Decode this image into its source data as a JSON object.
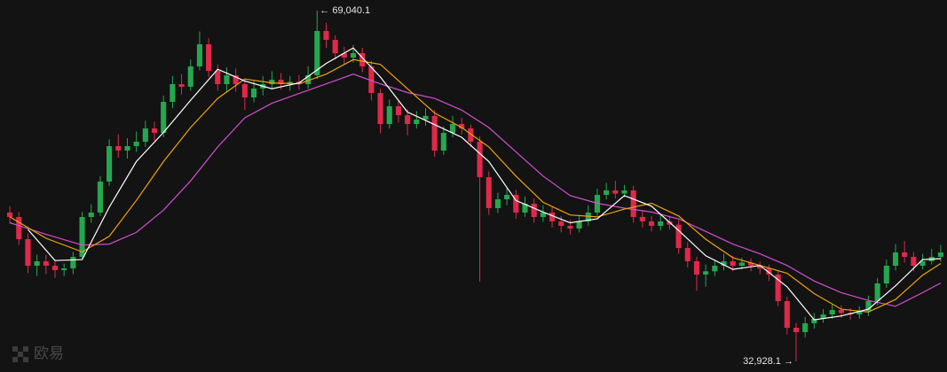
{
  "chart_data": {
    "type": "candlestick",
    "up_color": "#25a750",
    "down_color": "#e0294a",
    "ylim": [
      31830,
      70134
    ],
    "open": [
      48246,
      47790,
      45510,
      42774,
      43230,
      42774,
      42318,
      42500,
      43686,
      47790,
      48246,
      51438,
      55086,
      54630,
      55086,
      55542,
      56910,
      56454,
      59646,
      61470,
      61200,
      63294,
      65574,
      62838,
      61470,
      62382,
      61470,
      60102,
      61014,
      61470,
      61926,
      61470,
      61700,
      61470,
      62382,
      66942,
      66030,
      64662,
      64206,
      64662,
      63294,
      60558,
      57366,
      59190,
      58278,
      57366,
      57822,
      58200,
      54630,
      56454,
      57366,
      56910,
      55542,
      51894,
      48702,
      49614,
      50070,
      48246,
      49158,
      47790,
      48246,
      47334,
      46878,
      46604,
      47334,
      48246,
      50070,
      50526,
      50200,
      50526,
      47790,
      47334,
      46878,
      47334,
      47000,
      44598,
      43230,
      41862,
      42200,
      42774,
      43230,
      42774,
      43100,
      42774,
      42500,
      41862,
      39126,
      36390,
      35934,
      36846,
      37302,
      37758,
      38214,
      37900,
      37758,
      38100,
      39126,
      40950,
      42774,
      44142,
      43686,
      42774,
      43230,
      43686
    ],
    "high": [
      48900,
      48300,
      46100,
      43900,
      43900,
      43400,
      43000,
      44200,
      48300,
      49100,
      52000,
      55800,
      56300,
      55900,
      56600,
      57700,
      57600,
      60300,
      62300,
      62500,
      64000,
      66900,
      66200,
      63500,
      63200,
      63100,
      62000,
      61800,
      62300,
      62800,
      62600,
      62300,
      62400,
      63300,
      69040.1,
      67800,
      66500,
      65300,
      65500,
      65200,
      63900,
      61000,
      59900,
      59800,
      58900,
      58700,
      59000,
      58800,
      57100,
      58200,
      58000,
      57300,
      56100,
      52500,
      50300,
      50800,
      50600,
      49900,
      49700,
      49000,
      48800,
      47900,
      47500,
      48000,
      49000,
      50700,
      51300,
      51500,
      51100,
      51000,
      48500,
      47900,
      48100,
      47900,
      47500,
      45200,
      43700,
      42900,
      43400,
      44000,
      43800,
      43600,
      43500,
      43200,
      42900,
      42300,
      39600,
      36900,
      37500,
      37900,
      38300,
      38900,
      38700,
      38400,
      38600,
      39700,
      41500,
      43400,
      45000,
      45300,
      44200,
      44000,
      44500,
      44900
    ],
    "low": [
      47100,
      44900,
      42000,
      41700,
      41900,
      41500,
      41700,
      41900,
      43400,
      47200,
      47900,
      51000,
      53900,
      53800,
      54500,
      55000,
      55600,
      56000,
      59000,
      60400,
      60800,
      62900,
      62200,
      60800,
      60600,
      60700,
      58800,
      59600,
      60300,
      61000,
      60900,
      60800,
      60900,
      61000,
      62000,
      65200,
      64000,
      63500,
      63700,
      62700,
      59800,
      56400,
      56900,
      57500,
      56200,
      56900,
      57200,
      54000,
      54200,
      56000,
      56300,
      55000,
      41134,
      48000,
      48200,
      49000,
      47600,
      47800,
      47200,
      47300,
      46700,
      46200,
      46000,
      46200,
      46900,
      47900,
      49600,
      49700,
      49800,
      47200,
      46700,
      46300,
      46400,
      46500,
      44000,
      42600,
      40200,
      40600,
      41700,
      42300,
      42200,
      42400,
      42200,
      41900,
      41200,
      38600,
      35700,
      32928.1,
      35400,
      36300,
      36900,
      37300,
      37400,
      37200,
      37300,
      37600,
      38700,
      40500,
      42300,
      43100,
      42200,
      42400,
      42900,
      43200
    ],
    "close": [
      47790,
      45510,
      42774,
      43230,
      42774,
      42318,
      42500,
      43686,
      47790,
      48246,
      51438,
      55086,
      54630,
      55086,
      55542,
      56910,
      56454,
      59646,
      61470,
      61200,
      63294,
      65574,
      62838,
      61470,
      62382,
      61470,
      60102,
      61014,
      61470,
      61926,
      61470,
      61700,
      61470,
      62382,
      66942,
      66030,
      64662,
      64206,
      64662,
      63294,
      60558,
      57366,
      59190,
      58278,
      57366,
      57822,
      58200,
      54630,
      56454,
      57366,
      56910,
      55542,
      51894,
      48702,
      49614,
      50070,
      48246,
      49158,
      47790,
      48246,
      47334,
      46878,
      46604,
      47334,
      48246,
      50070,
      50526,
      50200,
      50526,
      47790,
      47334,
      46878,
      47334,
      47000,
      44598,
      43230,
      41862,
      42200,
      42774,
      43230,
      42774,
      43100,
      42774,
      42500,
      41862,
      39126,
      36390,
      35934,
      36846,
      37302,
      37758,
      38214,
      37900,
      37758,
      38100,
      39126,
      40950,
      42774,
      44142,
      43686,
      42774,
      43230,
      43686,
      44142
    ],
    "lines": [
      {
        "color": "#d14fd1",
        "x": [
          0,
          4,
          8,
          11,
          14,
          17,
          20,
          23,
          26,
          29,
          32,
          35,
          38,
          41,
          44,
          47,
          50,
          53,
          56,
          59,
          62,
          65,
          68,
          71,
          74,
          77,
          80,
          83,
          86,
          89,
          92,
          95,
          98,
          101,
          103
        ],
        "values": [
          47200,
          46000,
          44900,
          45000,
          46200,
          48500,
          51500,
          55000,
          58000,
          59500,
          60500,
          61500,
          62500,
          61500,
          60600,
          60000,
          58800,
          57000,
          54500,
          52000,
          50000,
          49200,
          48700,
          48300,
          47600,
          46300,
          45000,
          44000,
          42800,
          41200,
          40000,
          39200,
          38600,
          40000,
          41000
        ]
      },
      {
        "color": "#f0a30a",
        "x": [
          0,
          4,
          8,
          11,
          14,
          17,
          20,
          23,
          26,
          29,
          32,
          35,
          38,
          41,
          44,
          47,
          50,
          53,
          56,
          59,
          62,
          65,
          68,
          71,
          74,
          77,
          80,
          83,
          86,
          89,
          92,
          95,
          98,
          101,
          103
        ],
        "values": [
          47800,
          45600,
          44200,
          45800,
          49500,
          53500,
          57000,
          60000,
          62000,
          61600,
          61500,
          62500,
          64000,
          63500,
          61000,
          58500,
          57000,
          55000,
          52000,
          49300,
          48000,
          47800,
          48600,
          49200,
          47900,
          45500,
          43600,
          42800,
          42000,
          39900,
          38300,
          38000,
          39300,
          41800,
          43000
        ]
      },
      {
        "color": "#ffffff",
        "x": [
          2,
          5,
          8,
          11,
          14,
          17,
          20,
          23,
          26,
          29,
          32,
          35,
          38,
          41,
          44,
          47,
          50,
          53,
          56,
          59,
          62,
          65,
          68,
          71,
          74,
          77,
          80,
          83,
          86,
          89,
          92,
          95,
          98,
          101,
          103
        ],
        "values": [
          46500,
          43300,
          43400,
          48800,
          53500,
          56500,
          59800,
          63000,
          61800,
          61000,
          61600,
          63600,
          65200,
          62200,
          58600,
          57300,
          56000,
          53500,
          49500,
          48300,
          47200,
          47600,
          50000,
          48900,
          46400,
          43800,
          42400,
          42800,
          40600,
          37200,
          37600,
          38300,
          40700,
          43400,
          43500
        ]
      }
    ],
    "annotations": [
      {
        "text": "← 69,040.1",
        "value": 69040.1
      },
      {
        "text": "32,928.1 →",
        "value": 32928.1
      }
    ],
    "watermark": "欧易"
  }
}
